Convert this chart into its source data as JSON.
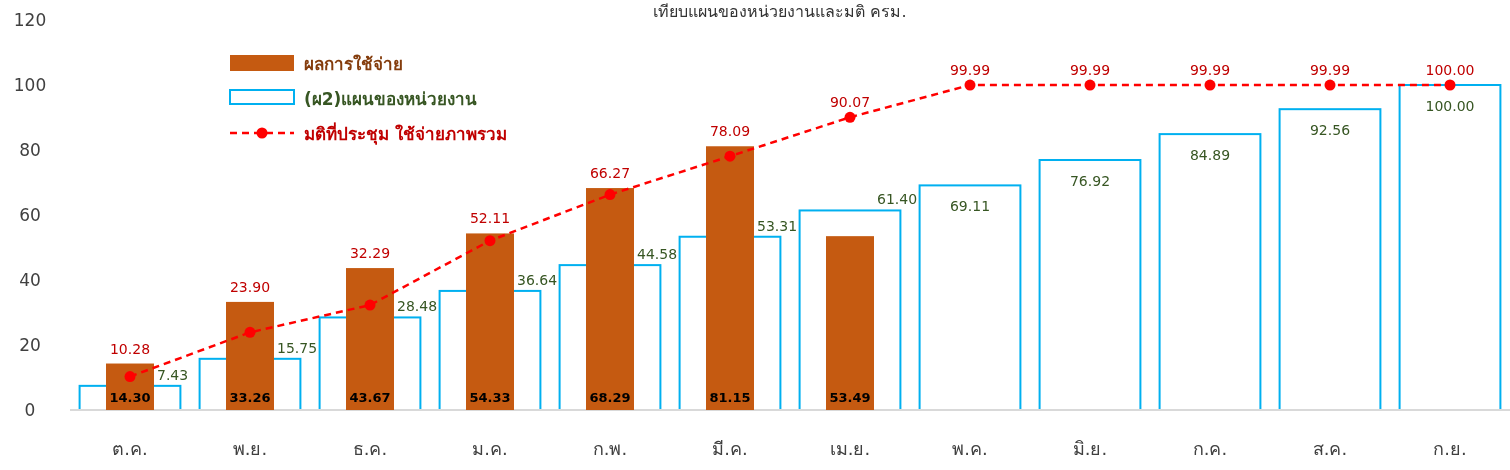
{
  "chart_data": {
    "type": "bar",
    "title": "เทียบแผนของหน่วยงานและมติ ครม.",
    "categories": [
      "ต.ค.",
      "พ.ย.",
      "ธ.ค.",
      "ม.ค.",
      "ก.พ.",
      "มี.ค.",
      "เม.ย.",
      "พ.ค.",
      "มิ.ย.",
      "ก.ค.",
      "ส.ค.",
      "ก.ย."
    ],
    "series": [
      {
        "name": "ผลการใช้จ่าย",
        "color": "#c55a11",
        "values": [
          14.3,
          33.26,
          43.67,
          54.33,
          68.29,
          81.15,
          53.49,
          null,
          null,
          null,
          null,
          null
        ],
        "value_labels": [
          "14.30",
          "33.26",
          "43.67",
          "54.33",
          "68.29",
          "81.15",
          "53.49",
          null,
          null,
          null,
          null,
          null
        ]
      },
      {
        "name": "(ผ2)แผนของหน่วยงาน",
        "color": "#00b0f0",
        "values": [
          7.43,
          15.75,
          28.48,
          36.64,
          44.58,
          53.31,
          61.4,
          69.11,
          76.92,
          84.89,
          92.56,
          100.0
        ],
        "value_labels": [
          "7.43",
          "15.75",
          "28.48",
          "36.64",
          "44.58",
          "53.31",
          "61.40",
          "69.11",
          "76.92",
          "84.89",
          "92.56",
          "100.00"
        ]
      },
      {
        "name": "มติที่ประชุม ใช้จ่ายภาพรวม",
        "type": "line",
        "color": "#ff0000",
        "values": [
          10.28,
          23.9,
          32.29,
          52.11,
          66.27,
          78.09,
          90.07,
          99.99,
          99.99,
          99.99,
          99.99,
          100.0
        ],
        "value_labels": [
          "10.28",
          "23.90",
          "32.29",
          "52.11",
          "66.27",
          "78.09",
          "90.07",
          "99.99",
          "99.99",
          "99.99",
          "99.99",
          "100.00"
        ],
        "marker": "circle",
        "line_style": "dashed"
      }
    ],
    "ylim": [
      0,
      120
    ],
    "yticks": [
      0,
      20,
      40,
      60,
      80,
      100,
      120
    ],
    "legend": "top left",
    "grid": false
  }
}
